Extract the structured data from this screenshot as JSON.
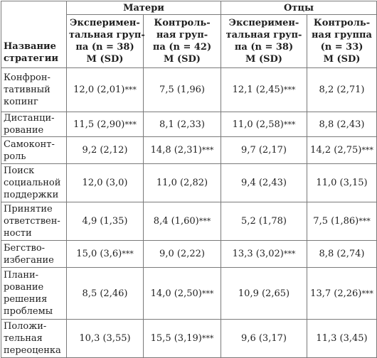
{
  "header": {
    "strategy": [
      "Название",
      "стратегии"
    ],
    "groups": [
      "Матери",
      "Отцы"
    ],
    "columns": [
      [
        "Эксперимен-",
        "тальная груп-",
        "па (n = 38)",
        "M (SD)"
      ],
      [
        "Контроль-",
        "ная груп-",
        "па (n = 42)",
        "M (SD)"
      ],
      [
        "Эксперимен-",
        "тальная груп-",
        "па (n = 38)",
        "M (SD)"
      ],
      [
        "Контроль-",
        "ная группа",
        "(n = 33)",
        "M (SD)"
      ]
    ]
  },
  "rows": [
    {
      "name": [
        "Конфрон-",
        "тативный",
        "копинг"
      ],
      "cells": [
        {
          "v": "12,0 (2,01)",
          "s": "***"
        },
        {
          "v": "7,5 (1,96)",
          "s": ""
        },
        {
          "v": "12,1 (2,45)",
          "s": "***"
        },
        {
          "v": "8,2 (2,71)",
          "s": ""
        }
      ]
    },
    {
      "name": [
        "Дистанци-",
        "рование"
      ],
      "cells": [
        {
          "v": "11,5 (2,90)",
          "s": "***"
        },
        {
          "v": "8,1 (2,33)",
          "s": ""
        },
        {
          "v": "11,0 (2,58)",
          "s": "***"
        },
        {
          "v": "8,8 (2,43)",
          "s": ""
        }
      ]
    },
    {
      "name": [
        "Самоконт-",
        "роль"
      ],
      "cells": [
        {
          "v": "9,2 (2,12)",
          "s": ""
        },
        {
          "v": "14,8 (2,31)",
          "s": "***"
        },
        {
          "v": "9,7 (2,17)",
          "s": ""
        },
        {
          "v": "14,2 (2,75)",
          "s": "***"
        }
      ]
    },
    {
      "name": [
        "Поиск",
        "социальной",
        "поддержки"
      ],
      "cells": [
        {
          "v": "12,0 (3,0)",
          "s": ""
        },
        {
          "v": "11,0 (2,82)",
          "s": ""
        },
        {
          "v": "9,4 (2,43)",
          "s": ""
        },
        {
          "v": "11,0 (3,15)",
          "s": ""
        }
      ]
    },
    {
      "name": [
        "Принятие",
        "ответствен-",
        "ности"
      ],
      "cells": [
        {
          "v": "4,9 (1,35)",
          "s": ""
        },
        {
          "v": "8,4 (1,60)",
          "s": "***"
        },
        {
          "v": "5,2 (1,78)",
          "s": ""
        },
        {
          "v": "7,5 (1,86)",
          "s": "***"
        }
      ]
    },
    {
      "name": [
        "Бегство-",
        "избегание"
      ],
      "cells": [
        {
          "v": "15,0 (3,6)",
          "s": "***"
        },
        {
          "v": "9,0 (2,22)",
          "s": ""
        },
        {
          "v": "13,3 (3,02)",
          "s": "***"
        },
        {
          "v": "8,8 (2,74)",
          "s": ""
        }
      ]
    },
    {
      "name": [
        "Плани-",
        "рование",
        "решения",
        "проблемы"
      ],
      "cells": [
        {
          "v": "8,5 (2,46)",
          "s": ""
        },
        {
          "v": "14,0 (2,50)",
          "s": "***"
        },
        {
          "v": "10,9 (2,65)",
          "s": ""
        },
        {
          "v": "13,7 (2,26)",
          "s": "***"
        }
      ]
    },
    {
      "name": [
        "Положи-",
        "тельная",
        "переоценка"
      ],
      "cells": [
        {
          "v": "10,3 (3,55)",
          "s": ""
        },
        {
          "v": "15,5 (3,19)",
          "s": "***"
        },
        {
          "v": "9,6 (3,17)",
          "s": ""
        },
        {
          "v": "11,3 (3,45)",
          "s": ""
        }
      ]
    }
  ]
}
